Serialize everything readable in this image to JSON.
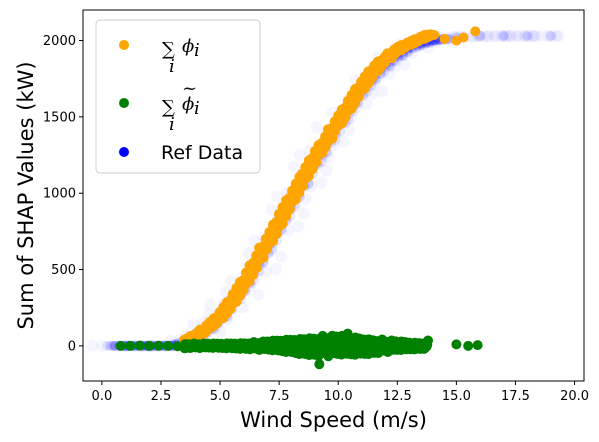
{
  "chart_data": {
    "type": "scatter",
    "xlabel": "Wind Speed (m/s)",
    "ylabel": "Sum of SHAP Values (kW)",
    "xlim": [
      -0.8,
      20.4
    ],
    "ylim": [
      -230,
      2200
    ],
    "xticks": [
      0.0,
      2.5,
      5.0,
      7.5,
      10.0,
      12.5,
      15.0,
      17.5,
      20.0
    ],
    "xtick_labels": [
      "0.0",
      "2.5",
      "5.0",
      "7.5",
      "10.0",
      "12.5",
      "15.0",
      "17.5",
      "20.0"
    ],
    "yticks": [
      0,
      500,
      1000,
      1500,
      2000
    ],
    "ytick_labels": [
      "0",
      "500",
      "1000",
      "1500",
      "2000"
    ],
    "grid": false,
    "legend_position": "top-left",
    "series": [
      {
        "name": "∑i φi",
        "legend": {
          "sum": "∑",
          "sub": "i",
          "var": "ϕ",
          "var_sub": "i",
          "tilde": false
        },
        "color": "#ffa500",
        "style": "opaque",
        "x": [
          3.7,
          4.0,
          4.3,
          4.6,
          4.9,
          5.2,
          5.5,
          5.8,
          6.1,
          6.4,
          6.7,
          7.0,
          7.3,
          7.6,
          7.9,
          8.2,
          8.5,
          8.8,
          9.1,
          9.4,
          9.7,
          10.0,
          10.3,
          10.6,
          10.9,
          11.2,
          11.5,
          11.8,
          12.1,
          12.4,
          12.7,
          13.0,
          13.3,
          13.6,
          13.9,
          14.5,
          15.0,
          15.3,
          15.8
        ],
        "y": [
          40,
          70,
          100,
          140,
          180,
          230,
          290,
          360,
          430,
          510,
          600,
          680,
          760,
          850,
          930,
          1010,
          1090,
          1170,
          1250,
          1320,
          1400,
          1470,
          1540,
          1610,
          1680,
          1740,
          1800,
          1850,
          1890,
          1930,
          1960,
          1980,
          2000,
          2020,
          2040,
          2010,
          2000,
          2020,
          2060
        ]
      },
      {
        "name": "∑i φ̃i",
        "legend": {
          "sum": "∑",
          "sub": "i",
          "var": "ϕ",
          "var_sub": "i",
          "tilde": true
        },
        "color": "#008000",
        "style": "opaque",
        "x": [
          0.8,
          1.2,
          1.6,
          2.0,
          2.4,
          2.8,
          3.2,
          3.6,
          4.0,
          4.5,
          5.0,
          5.5,
          6.0,
          6.5,
          7.0,
          7.5,
          8.0,
          8.5,
          9.0,
          9.2,
          9.5,
          10.0,
          10.4,
          10.8,
          11.2,
          11.6,
          12.0,
          12.4,
          12.8,
          13.2,
          13.5,
          13.8,
          15.0,
          15.5,
          15.9
        ],
        "y": [
          0,
          0,
          2,
          0,
          1,
          0,
          -2,
          5,
          0,
          -3,
          5,
          -5,
          10,
          15,
          -10,
          20,
          25,
          35,
          40,
          -120,
          50,
          30,
          80,
          -25,
          40,
          20,
          15,
          -10,
          25,
          -15,
          10,
          35,
          10,
          0,
          5
        ]
      },
      {
        "name": "Ref Data",
        "color": "#0000ff",
        "style": "faint",
        "x": [
          0.5,
          1.0,
          2.0,
          3.0,
          3.5,
          4.0,
          4.5,
          5.0,
          5.5,
          6.0,
          6.5,
          7.0,
          7.5,
          8.0,
          8.5,
          9.0,
          9.5,
          10.0,
          10.5,
          11.0,
          11.5,
          12.0,
          12.5,
          13.0,
          13.5,
          14.0,
          14.5,
          15.0,
          16.0,
          17.0,
          18.0,
          19.0
        ],
        "y": [
          0,
          0,
          0,
          0,
          20,
          60,
          110,
          180,
          280,
          390,
          510,
          640,
          780,
          920,
          1060,
          1190,
          1320,
          1440,
          1560,
          1670,
          1760,
          1840,
          1900,
          1950,
          1980,
          2000,
          2010,
          2020,
          2030,
          2030,
          2030,
          2030
        ]
      }
    ]
  }
}
